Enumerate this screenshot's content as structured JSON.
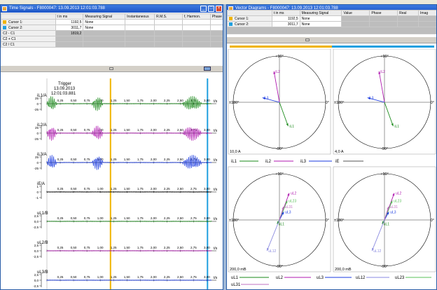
{
  "time_window": {
    "title": "Time Signals - F8000047: 13.09.2013 12:01:03.788",
    "table": {
      "headers": [
        "t in ms",
        "Measuring Signal",
        "Instantaneous",
        "R.M.S.",
        "f, Harmon.",
        "Phase"
      ],
      "rows": [
        {
          "label": "Cursor 1:",
          "color": "#f0b400",
          "t": "1192,5",
          "signal": "None"
        },
        {
          "label": "Cursor 2:",
          "color": "#20a0e0",
          "t": "3011,7",
          "signal": "None"
        },
        {
          "label": "C2 - C1",
          "t": "1819,2"
        },
        {
          "label": "C2 + C1",
          "t": ""
        },
        {
          "label": "C2 / C1",
          "t": ""
        }
      ]
    },
    "trigger": {
      "label": "Trigger",
      "date": "13.09.2013",
      "time": "12:01:03.881"
    },
    "x_ticks": [
      "0",
      "0,25",
      "0,50",
      "0,75",
      "1,00",
      "1,25",
      "1,50",
      "1,75",
      "2,00",
      "2,25",
      "2,50",
      "2,75",
      "3,00"
    ],
    "x_unit": "t/s",
    "channels": [
      {
        "name": "iL1/A",
        "color": "#1a8a1a",
        "ticks": [
          "25",
          "0",
          "-25"
        ],
        "burst": [
          true,
          true,
          true
        ]
      },
      {
        "name": "iL2/A",
        "color": "#b01ab0",
        "ticks": [
          "25",
          "0",
          "-25"
        ],
        "burst": [
          true,
          true,
          true
        ]
      },
      {
        "name": "iL3/A",
        "color": "#1a3ae0",
        "ticks": [
          "25",
          "0",
          "-25"
        ],
        "burst": [
          true,
          true,
          true
        ]
      },
      {
        "name": "iE/A",
        "color": "#000000",
        "ticks": [
          "1",
          "0",
          "-1"
        ],
        "burst": [
          false,
          false,
          false
        ]
      },
      {
        "name": "uL1/B",
        "color": "#1a8a1a",
        "ticks": [
          "2,5",
          "0,0",
          "-2,5"
        ],
        "burst": [
          false,
          false,
          false
        ]
      },
      {
        "name": "uL2/B",
        "color": "#b01ab0",
        "ticks": [
          "2,5",
          "0,0",
          "-2,5"
        ],
        "burst": [
          false,
          false,
          false
        ]
      },
      {
        "name": "uL3/B",
        "color": "#1a3ae0",
        "ticks": [
          "2,5",
          "0,0",
          "-2,5"
        ],
        "burst": [
          false,
          false,
          false
        ]
      }
    ]
  },
  "vector_window": {
    "title": "Vector Diagrams - F8000047: 13.09.2013 12:01:03.788",
    "table": {
      "headers": [
        "t in ms",
        "Measuring Signal",
        "Value",
        "Phase",
        "Real",
        "Imag"
      ],
      "rows": [
        {
          "label": "Cursor 1:",
          "color": "#f0b400",
          "t": "1192,5",
          "signal": "None"
        },
        {
          "label": "Cursor 2:",
          "color": "#20a0e0",
          "t": "3011,7",
          "signal": "None"
        }
      ]
    },
    "angle_labels": {
      "top": "+90°",
      "bottom": "-90°",
      "left": "±180°",
      "right": "0°"
    },
    "current_scale": "10,0  A",
    "current_scale_right": "4,0  A",
    "voltage_scale": "200,0 mB",
    "voltage_scale_right": "200,0 mB",
    "current_legend": [
      "iL1",
      "iL2",
      "iL3",
      "iE"
    ],
    "voltage_legend": [
      "uL1",
      "uL2",
      "uL3",
      "uL12",
      "uL23",
      "uL31"
    ]
  },
  "colors": {
    "cursor1": "#f0b400",
    "cursor2": "#20a0e0",
    "titlebar": "#1e56c7",
    "L1": "#1a8a1a",
    "L2": "#b01ab0",
    "L3": "#1a3ae0"
  }
}
